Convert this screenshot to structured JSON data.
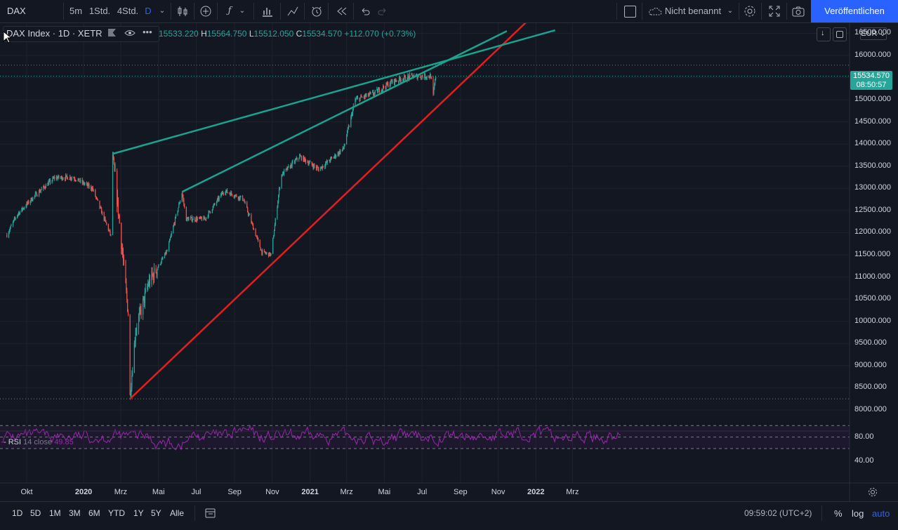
{
  "toolbar": {
    "symbol": "DAX",
    "intervals": [
      "5m",
      "1Std.",
      "4Std.",
      "D"
    ],
    "layout_name": "Nicht benannt",
    "publish_label": "Veröffentlichen"
  },
  "legend": {
    "title": "DAX Index · 1D · XETR",
    "open": "15533.220",
    "high": "15564.750",
    "low": "15512.050",
    "close": "15534.570",
    "change": "+112.070 (+0.73%)"
  },
  "currency": "EUR",
  "price_axis": {
    "labels": [
      "16500.000",
      "16000.000",
      "15500.000",
      "15000.000",
      "14500.000",
      "14000.000",
      "13500.000",
      "13000.000",
      "12500.000",
      "12000.000",
      "11500.000",
      "11000.000",
      "10500.000",
      "10000.000",
      "9500.000",
      "9000.000",
      "8500.000",
      "8000.000"
    ],
    "current_price": "15534.570",
    "countdown": "08:50:57"
  },
  "rsi": {
    "label": "RSI",
    "params": "14 close",
    "value": "49.85",
    "axis_labels": [
      "80.00",
      "40.00"
    ]
  },
  "time_axis": [
    "Okt",
    "2020",
    "Mrz",
    "Mai",
    "Jul",
    "Sep",
    "Nov",
    "2021",
    "Mrz",
    "Mai",
    "Jul",
    "Sep",
    "Nov",
    "2022",
    "Mrz"
  ],
  "bottom": {
    "ranges": [
      "1D",
      "5D",
      "1M",
      "3M",
      "6M",
      "YTD",
      "1Y",
      "5Y",
      "Alle"
    ],
    "clock": "09:59:02 (UTC+2)",
    "percent": "%",
    "log": "log",
    "auto": "auto"
  },
  "colors": {
    "background": "#131722",
    "up": "#26a69a",
    "down": "#ef5350",
    "trend_support": "#e31e1e",
    "trend_resistance": "#1aa38f",
    "rsi": "#9c27b0",
    "accent": "#2962ff"
  },
  "chart_data": {
    "type": "candlestick",
    "y_scale": "linear",
    "ylim": [
      7700,
      16600
    ],
    "x_range": [
      "2019-08-30",
      "2022-04-15"
    ],
    "series_monthly_approx": [
      {
        "month": "2019-09",
        "close": 12400
      },
      {
        "month": "2019-10",
        "close": 12850
      },
      {
        "month": "2019-11",
        "close": 13240
      },
      {
        "month": "2019-12",
        "close": 13250
      },
      {
        "month": "2020-01",
        "close": 13000
      },
      {
        "month": "2020-02",
        "close": 11900
      },
      {
        "month": "2020-03",
        "close": 9900
      },
      {
        "month": "2020-04",
        "close": 10860
      },
      {
        "month": "2020-05",
        "close": 11590
      },
      {
        "month": "2020-06",
        "close": 12310
      },
      {
        "month": "2020-07",
        "close": 12310
      },
      {
        "month": "2020-08",
        "close": 12950
      },
      {
        "month": "2020-09",
        "close": 12760
      },
      {
        "month": "2020-10",
        "close": 11560
      },
      {
        "month": "2020-11",
        "close": 13290
      },
      {
        "month": "2020-12",
        "close": 13720
      },
      {
        "month": "2021-01",
        "close": 13430
      },
      {
        "month": "2021-02",
        "close": 13790
      },
      {
        "month": "2021-03",
        "close": 15000
      },
      {
        "month": "2021-04",
        "close": 15150
      },
      {
        "month": "2021-05",
        "close": 15420
      },
      {
        "month": "2021-06",
        "close": 15530
      },
      {
        "month": "2021-07",
        "close": 15534.57
      }
    ],
    "trendlines": [
      {
        "name": "support",
        "color": "red",
        "from": [
          "2020-03-16",
          8250
        ],
        "to": [
          "2021-12-20",
          16800
        ]
      },
      {
        "name": "resistance-1",
        "color": "teal",
        "from": [
          "2020-02-17",
          13780
        ],
        "to": [
          "2022-02-01",
          16570
        ]
      },
      {
        "name": "resistance-2",
        "color": "teal",
        "from": [
          "2020-06-08",
          12920
        ],
        "to": [
          "2021-11-15",
          16550
        ]
      }
    ],
    "horizontal_levels": [
      15780,
      15534.57,
      8250
    ]
  }
}
